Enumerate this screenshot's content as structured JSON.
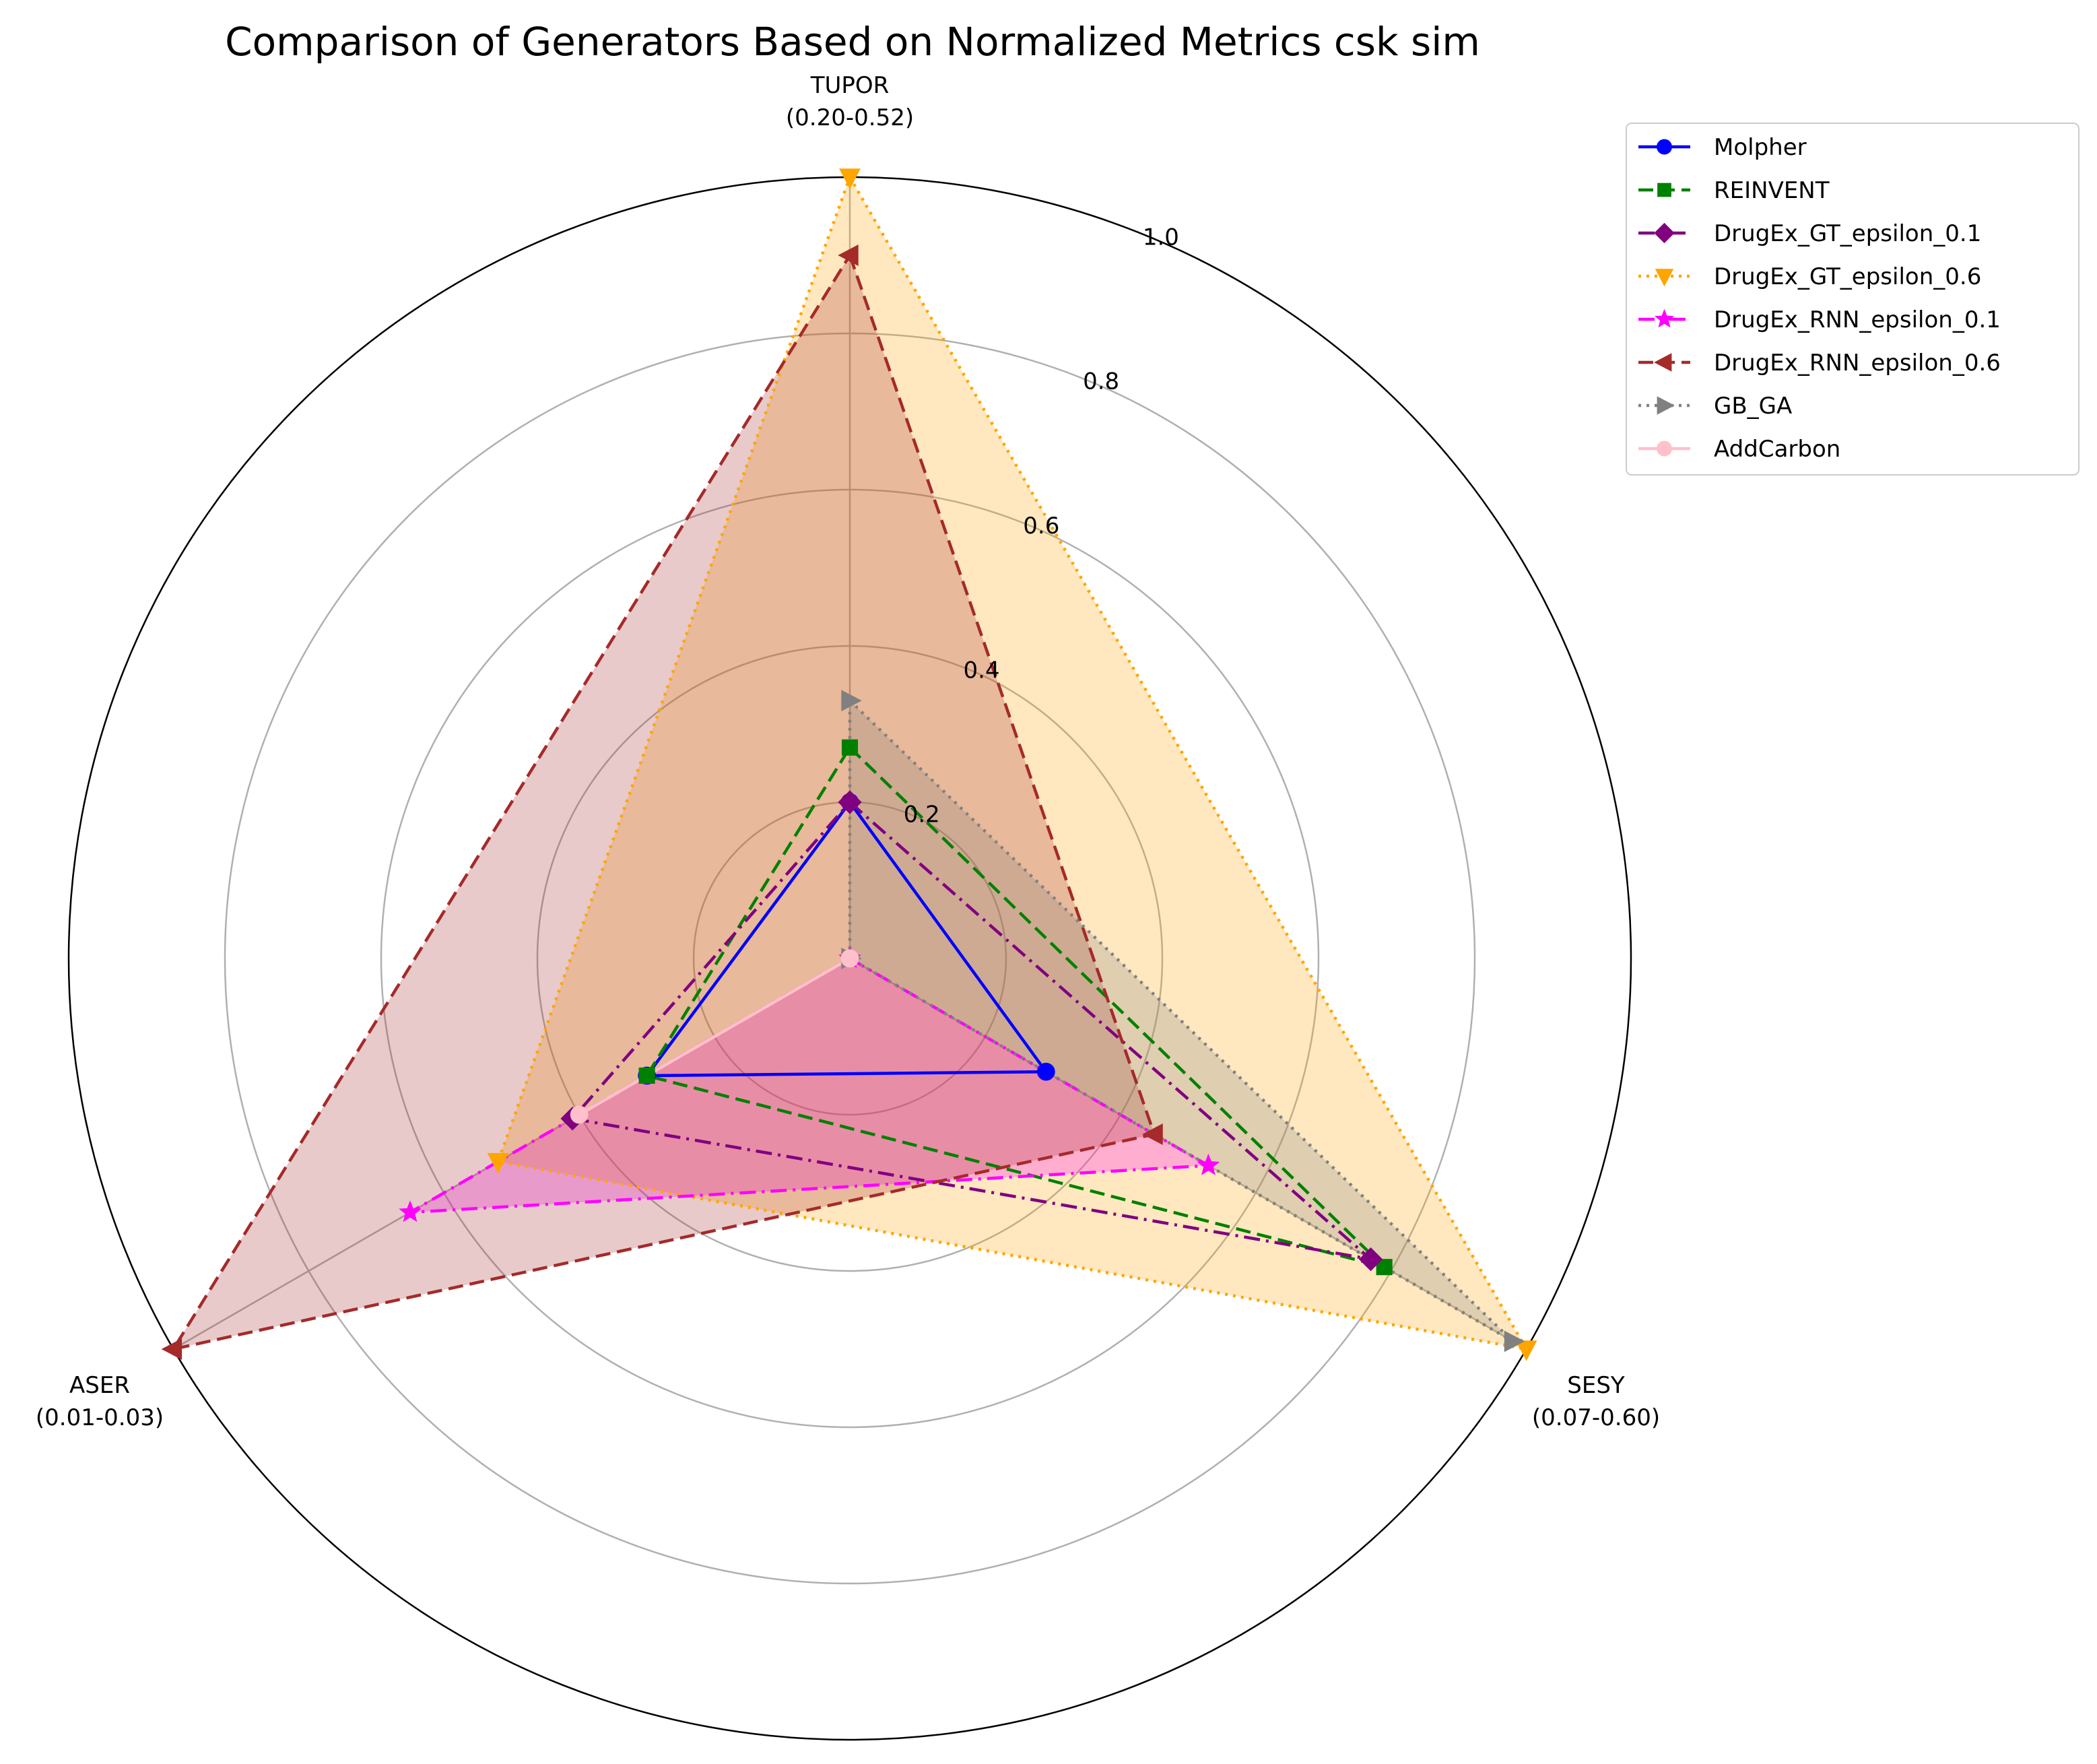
{
  "chart_data": {
    "type": "radar",
    "title": "Comparison of Generators Based on Normalized Metrics csk sim",
    "axes": [
      {
        "name": "TUPOR",
        "range": "(0.20-0.52)"
      },
      {
        "name": "SESY",
        "range": "(0.07-0.60)"
      },
      {
        "name": "ASER",
        "range": "(0.01-0.03)"
      }
    ],
    "rlim": [
      0,
      1.0
    ],
    "rticks": [
      "0.2",
      "0.4",
      "0.6",
      "0.8",
      "1.0"
    ],
    "grid": true,
    "legend_position": "upper-right outside",
    "series": [
      {
        "name": "Molpher",
        "color": "#0000ff",
        "dash": "solid",
        "marker": "circle",
        "fill": false,
        "values": [
          0.2,
          0.29,
          0.3
        ]
      },
      {
        "name": "REINVENT",
        "color": "#008000",
        "dash": "dashed",
        "marker": "square",
        "fill": false,
        "values": [
          0.27,
          0.79,
          0.3
        ]
      },
      {
        "name": "DrugEx_GT_epsilon_0.1",
        "color": "#800080",
        "dash": "dashdot",
        "marker": "diamond",
        "fill": false,
        "values": [
          0.2,
          0.77,
          0.41
        ]
      },
      {
        "name": "DrugEx_GT_epsilon_0.6",
        "color": "#ffa500",
        "dash": "dotted",
        "marker": "triangle-down",
        "fill": true,
        "values": [
          1.0,
          1.0,
          0.52
        ]
      },
      {
        "name": "DrugEx_RNN_epsilon_0.1",
        "color": "#ff00ff",
        "dash": "dashdot",
        "marker": "star",
        "fill": true,
        "values": [
          0.0,
          0.53,
          0.65
        ]
      },
      {
        "name": "DrugEx_RNN_epsilon_0.6",
        "color": "#a52a2a",
        "dash": "dashed",
        "marker": "triangle-left",
        "fill": true,
        "values": [
          0.9,
          0.45,
          1.0
        ]
      },
      {
        "name": "GB_GA",
        "color": "#808080",
        "dash": "dotted",
        "marker": "triangle-right",
        "fill": true,
        "values": [
          0.33,
          0.98,
          0.0
        ]
      },
      {
        "name": "AddCarbon",
        "color": "#ffc0cb",
        "dash": "solid",
        "marker": "circle",
        "fill": false,
        "values": [
          0.0,
          0.0,
          0.4
        ]
      }
    ]
  }
}
